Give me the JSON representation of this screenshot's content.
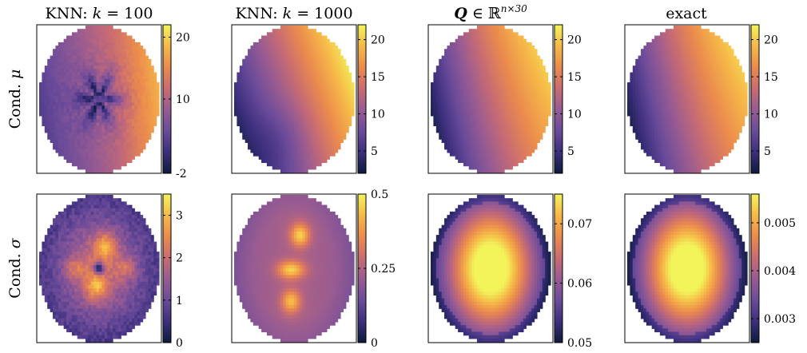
{
  "chart_data": {
    "type": "heatmap",
    "columns": [
      {
        "prefix": "KNN: ",
        "var": "k",
        "suffix": " = 100"
      },
      {
        "prefix": "KNN: ",
        "var": "k",
        "suffix": " = 1000"
      },
      {
        "bold": "Q",
        "middle": " ∈ ℝ",
        "sup": "n×30"
      },
      {
        "plain": "exact"
      }
    ],
    "rows": [
      {
        "prefix": "Cond. ",
        "symbol": "μ"
      },
      {
        "prefix": "Cond. ",
        "symbol": "σ"
      }
    ],
    "colorbar_colors": [
      "#0d1a3b",
      "#3c2f7d",
      "#6a4b9a",
      "#985b92",
      "#c96c72",
      "#eb8b4d",
      "#f6b948",
      "#f2f45a"
    ],
    "panels": [
      {
        "row": 0,
        "col": 0,
        "pattern": "mu_noisy",
        "range": [
          -2,
          22
        ],
        "ticks": [
          {
            "v": -2,
            "label": "-2"
          },
          {
            "v": 10,
            "label": "10"
          },
          {
            "v": 20,
            "label": "20"
          }
        ]
      },
      {
        "row": 0,
        "col": 1,
        "pattern": "mu_smooth_dark",
        "range": [
          2,
          22
        ],
        "ticks": [
          {
            "v": 5,
            "label": "5"
          },
          {
            "v": 10,
            "label": "10"
          },
          {
            "v": 15,
            "label": "15"
          },
          {
            "v": 20,
            "label": "20"
          }
        ]
      },
      {
        "row": 0,
        "col": 2,
        "pattern": "mu_exact",
        "range": [
          2,
          22
        ],
        "ticks": [
          {
            "v": 5,
            "label": "5"
          },
          {
            "v": 10,
            "label": "10"
          },
          {
            "v": 15,
            "label": "15"
          },
          {
            "v": 20,
            "label": "20"
          }
        ]
      },
      {
        "row": 0,
        "col": 3,
        "pattern": "mu_exact",
        "range": [
          2,
          22
        ],
        "ticks": [
          {
            "v": 5,
            "label": "5"
          },
          {
            "v": 10,
            "label": "10"
          },
          {
            "v": 15,
            "label": "15"
          },
          {
            "v": 20,
            "label": "20"
          }
        ]
      },
      {
        "row": 1,
        "col": 0,
        "pattern": "sigma_noisy",
        "range": [
          0,
          3.5
        ],
        "ticks": [
          {
            "v": 0,
            "label": "0"
          },
          {
            "v": 1,
            "label": "1"
          },
          {
            "v": 2,
            "label": "2"
          },
          {
            "v": 3,
            "label": "3"
          }
        ]
      },
      {
        "row": 1,
        "col": 1,
        "pattern": "sigma_blobs",
        "range": [
          0,
          0.5
        ],
        "ticks": [
          {
            "v": 0,
            "label": "0"
          },
          {
            "v": 0.25,
            "label": "0.25"
          },
          {
            "v": 0.5,
            "label": "0.5"
          }
        ]
      },
      {
        "row": 1,
        "col": 2,
        "pattern": "sigma_smooth",
        "range": [
          0.05,
          0.075
        ],
        "ticks": [
          {
            "v": 0.05,
            "label": "0.05"
          },
          {
            "v": 0.06,
            "label": "0.06"
          },
          {
            "v": 0.07,
            "label": "0.07"
          }
        ]
      },
      {
        "row": 1,
        "col": 3,
        "pattern": "sigma_smooth",
        "range": [
          0.0025,
          0.0056
        ],
        "ticks": [
          {
            "v": 0.003,
            "label": "0.003"
          },
          {
            "v": 0.004,
            "label": "0.004"
          },
          {
            "v": 0.005,
            "label": "0.005"
          }
        ]
      }
    ]
  }
}
